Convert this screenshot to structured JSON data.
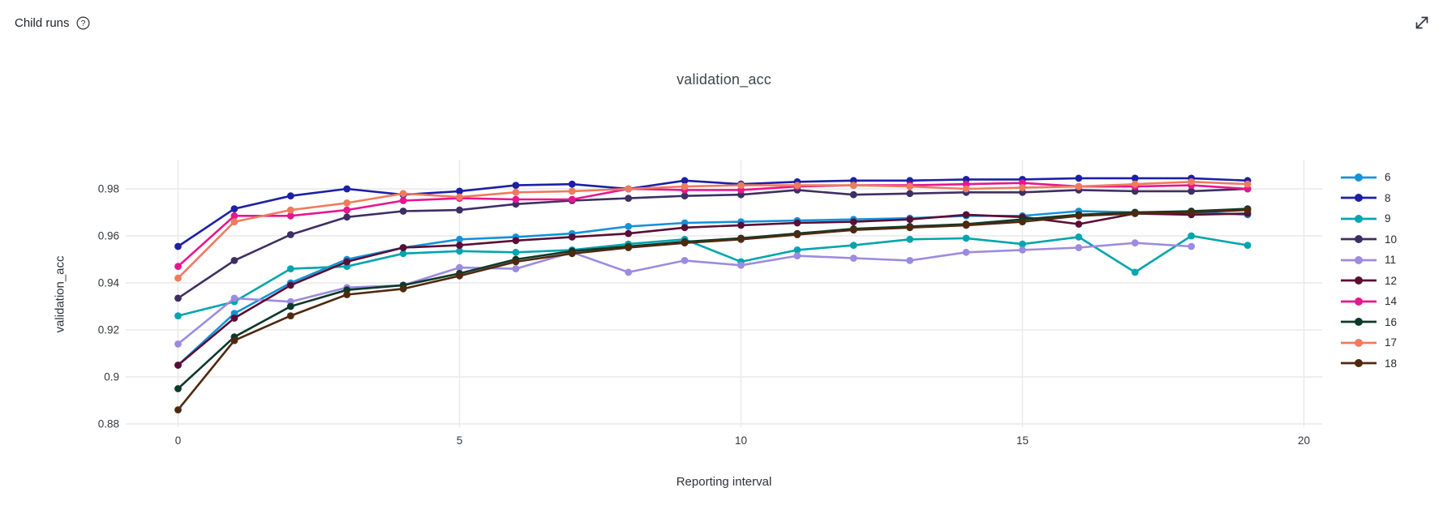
{
  "header": {
    "title": "Child runs",
    "help_glyph": "?"
  },
  "chart": {
    "title": "validation_acc",
    "x_axis": {
      "title": "Reporting interval",
      "tick_values": [
        0,
        5,
        10,
        15,
        20
      ],
      "tick_labels": [
        "0",
        "5",
        "10",
        "15",
        "20"
      ],
      "range": [
        0,
        20
      ]
    },
    "y_axis": {
      "title": "validation_acc",
      "tick_values": [
        0.88,
        0.9,
        0.92,
        0.94,
        0.96,
        0.98
      ],
      "tick_labels": [
        "0.88",
        "0.9",
        "0.92",
        "0.94",
        "0.96",
        "0.98"
      ],
      "range": [
        0.88,
        0.99
      ]
    },
    "grid_color": "#e9e9e9"
  },
  "chart_data": {
    "type": "line",
    "title": "validation_acc",
    "xlabel": "Reporting interval",
    "ylabel": "validation_acc",
    "xlim": [
      0,
      20
    ],
    "ylim": [
      0.88,
      0.99
    ],
    "grid": true,
    "legend_position": "right",
    "x": [
      0,
      1,
      2,
      3,
      4,
      5,
      6,
      7,
      8,
      9,
      10,
      11,
      12,
      13,
      14,
      15,
      16,
      17,
      18,
      19
    ],
    "series": [
      {
        "name": "6",
        "color": "#1492db",
        "values": [
          0.905,
          0.927,
          0.94,
          0.95,
          0.955,
          0.9585,
          0.9595,
          0.961,
          0.964,
          0.9655,
          0.966,
          0.9665,
          0.967,
          0.9675,
          0.9685,
          0.9685,
          0.9705,
          0.97,
          0.97,
          0.969
        ]
      },
      {
        "name": "8",
        "color": "#1b20a6",
        "values": [
          0.9555,
          0.9715,
          0.977,
          0.98,
          0.9775,
          0.979,
          0.9815,
          0.982,
          0.98,
          0.9835,
          0.982,
          0.983,
          0.9835,
          0.9835,
          0.984,
          0.984,
          0.9845,
          0.9845,
          0.9845,
          0.9835
        ]
      },
      {
        "name": "9",
        "color": "#00a5ad",
        "values": [
          0.926,
          0.932,
          0.946,
          0.947,
          0.9525,
          0.9535,
          0.953,
          0.954,
          0.9565,
          0.9585,
          0.949,
          0.954,
          0.956,
          0.9585,
          0.959,
          0.9565,
          0.9595,
          0.9445,
          0.96,
          0.956
        ]
      },
      {
        "name": "10",
        "color": "#3f2e63",
        "values": [
          0.9335,
          0.9495,
          0.9605,
          0.968,
          0.9705,
          0.971,
          0.9735,
          0.975,
          0.976,
          0.977,
          0.9775,
          0.9795,
          0.9775,
          0.978,
          0.9785,
          0.9785,
          0.9795,
          0.979,
          0.979,
          0.98
        ]
      },
      {
        "name": "11",
        "color": "#9c8be0",
        "values": [
          0.914,
          0.9335,
          0.932,
          0.938,
          0.939,
          0.9465,
          0.946,
          0.953,
          0.9445,
          0.9495,
          0.9475,
          0.9515,
          0.9505,
          0.9495,
          0.953,
          0.954,
          0.955,
          0.957,
          0.9555
        ]
      },
      {
        "name": "12",
        "color": "#5a0e35",
        "values": [
          0.905,
          0.925,
          0.939,
          0.949,
          0.955,
          0.956,
          0.958,
          0.9595,
          0.961,
          0.9635,
          0.9645,
          0.9655,
          0.966,
          0.967,
          0.969,
          0.968,
          0.965,
          0.9695,
          0.969,
          0.9695
        ]
      },
      {
        "name": "14",
        "color": "#e7168f",
        "values": [
          0.947,
          0.9685,
          0.9685,
          0.971,
          0.975,
          0.976,
          0.9755,
          0.9755,
          0.98,
          0.9795,
          0.9795,
          0.981,
          0.9815,
          0.9815,
          0.982,
          0.9825,
          0.981,
          0.981,
          0.9815,
          0.98
        ]
      },
      {
        "name": "16",
        "color": "#0d392a",
        "values": [
          0.895,
          0.917,
          0.93,
          0.937,
          0.939,
          0.944,
          0.95,
          0.9535,
          0.9555,
          0.9575,
          0.959,
          0.961,
          0.963,
          0.964,
          0.965,
          0.967,
          0.969,
          0.97,
          0.9705,
          0.9715
        ]
      },
      {
        "name": "17",
        "color": "#ee7b5e",
        "values": [
          0.942,
          0.966,
          0.971,
          0.974,
          0.978,
          0.9765,
          0.9785,
          0.979,
          0.98,
          0.981,
          0.9815,
          0.9815,
          0.9815,
          0.981,
          0.98,
          0.9805,
          0.981,
          0.982,
          0.983,
          0.982
        ]
      },
      {
        "name": "18",
        "color": "#4f290f",
        "values": [
          0.886,
          0.9155,
          0.926,
          0.935,
          0.9375,
          0.943,
          0.949,
          0.9525,
          0.955,
          0.957,
          0.9585,
          0.9605,
          0.9625,
          0.9635,
          0.9645,
          0.966,
          0.9685,
          0.9695,
          0.97,
          0.971
        ]
      }
    ]
  }
}
